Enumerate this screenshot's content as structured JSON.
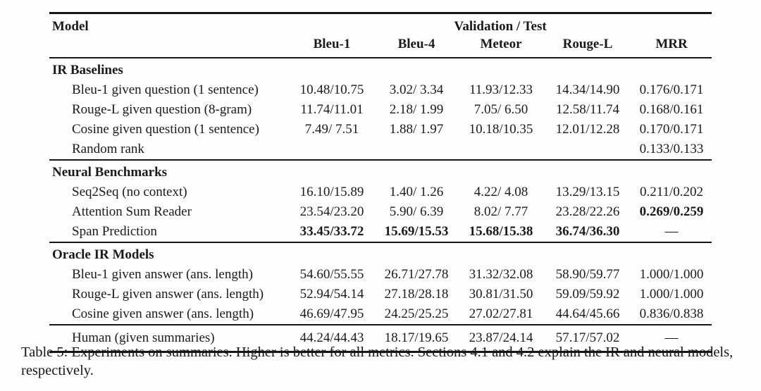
{
  "table": {
    "header": {
      "model_label": "Model",
      "group_label": "Validation / Test",
      "metrics": [
        "Bleu-1",
        "Bleu-4",
        "Meteor",
        "Rouge-L",
        "MRR"
      ]
    },
    "sections": [
      {
        "title": "IR Baselines",
        "rows": [
          {
            "model": "Bleu-1 given question (1 sentence)",
            "values": [
              "10.48/10.75",
              "3.02/ 3.34",
              "11.93/12.33",
              "14.34/14.90",
              "0.176/0.171"
            ],
            "bold": [
              false,
              false,
              false,
              false,
              false
            ]
          },
          {
            "model": "Rouge-L given question (8-gram)",
            "values": [
              "11.74/11.01",
              "2.18/ 1.99",
              "7.05/ 6.50",
              "12.58/11.74",
              "0.168/0.161"
            ],
            "bold": [
              false,
              false,
              false,
              false,
              false
            ]
          },
          {
            "model": "Cosine given question (1 sentence)",
            "values": [
              "7.49/ 7.51",
              "1.88/ 1.97",
              "10.18/10.35",
              "12.01/12.28",
              "0.170/0.171"
            ],
            "bold": [
              false,
              false,
              false,
              false,
              false
            ]
          },
          {
            "model": "Random rank",
            "values": [
              "",
              "",
              "",
              "",
              "0.133/0.133"
            ],
            "bold": [
              false,
              false,
              false,
              false,
              false
            ]
          }
        ]
      },
      {
        "title": "Neural Benchmarks",
        "rows": [
          {
            "model": "Seq2Seq (no context)",
            "values": [
              "16.10/15.89",
              "1.40/ 1.26",
              "4.22/ 4.08",
              "13.29/13.15",
              "0.211/0.202"
            ],
            "bold": [
              false,
              false,
              false,
              false,
              false
            ]
          },
          {
            "model": "Attention Sum Reader",
            "values": [
              "23.54/23.20",
              "5.90/ 6.39",
              "8.02/ 7.77",
              "23.28/22.26",
              "0.269/0.259"
            ],
            "bold": [
              false,
              false,
              false,
              false,
              true
            ]
          },
          {
            "model": "Span Prediction",
            "values": [
              "33.45/33.72",
              "15.69/15.53",
              "15.68/15.38",
              "36.74/36.30",
              "—"
            ],
            "bold": [
              true,
              true,
              true,
              true,
              false
            ]
          }
        ]
      },
      {
        "title": "Oracle IR Models",
        "rows": [
          {
            "model": "Bleu-1 given answer (ans. length)",
            "values": [
              "54.60/55.55",
              "26.71/27.78",
              "31.32/32.08",
              "58.90/59.77",
              "1.000/1.000"
            ],
            "bold": [
              false,
              false,
              false,
              false,
              false
            ]
          },
          {
            "model": "Rouge-L given answer (ans. length)",
            "values": [
              "52.94/54.14",
              "27.18/28.18",
              "30.81/31.50",
              "59.09/59.92",
              "1.000/1.000"
            ],
            "bold": [
              false,
              false,
              false,
              false,
              false
            ]
          },
          {
            "model": "Cosine given answer (ans. length)",
            "values": [
              "46.69/47.95",
              "24.25/25.25",
              "27.02/27.81",
              "44.64/45.66",
              "0.836/0.838"
            ],
            "bold": [
              false,
              false,
              false,
              false,
              false
            ]
          }
        ]
      }
    ],
    "footer_row": {
      "model": "Human (given summaries)",
      "values": [
        "44.24/44.43",
        "18.17/19.65",
        "23.87/24.14",
        "57.17/57.02",
        "—"
      ],
      "bold": [
        false,
        false,
        false,
        false,
        false
      ]
    }
  },
  "caption": "Table 5: Experiments on summaries. Higher is better for all metrics. Sections 4.1 and 4.2 explain the IR and neural models, respectively."
}
